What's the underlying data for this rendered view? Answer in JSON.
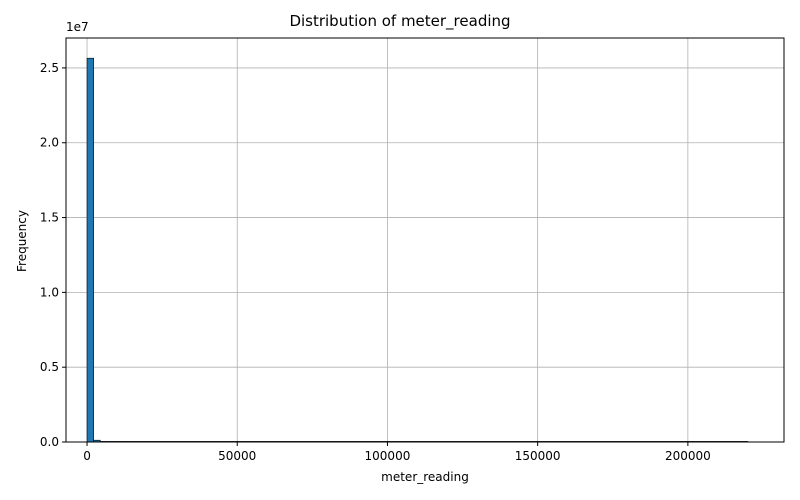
{
  "chart_data": {
    "type": "bar",
    "title": "Distribution of meter_reading",
    "xlabel": "meter_reading",
    "ylabel": "Frequency",
    "y_offset_label": "1e7",
    "xlim": [
      -7000,
      232000
    ],
    "ylim": [
      0,
      27000000
    ],
    "x_ticks": [
      0,
      50000,
      100000,
      150000,
      200000
    ],
    "x_tick_labels": [
      "0",
      "50000",
      "100000",
      "150000",
      "200000"
    ],
    "y_ticks": [
      0,
      5000000,
      10000000,
      15000000,
      20000000,
      25000000
    ],
    "y_tick_labels": [
      "0.0",
      "0.5",
      "1.0",
      "1.5",
      "2.0",
      "2.5"
    ],
    "grid": true,
    "bin_width": 2200,
    "bins": [
      {
        "x0": 0,
        "x1": 2200,
        "count": 25650000
      },
      {
        "x0": 2200,
        "x1": 4400,
        "count": 120000
      },
      {
        "x0": 4400,
        "x1": 6600,
        "count": 15000
      },
      {
        "x0": 6600,
        "x1": 8800,
        "count": 5000
      },
      {
        "x0": 8800,
        "x1": 11000,
        "count": 2000
      },
      {
        "x0": 11000,
        "x1": 220000,
        "count": 500
      }
    ],
    "colors": {
      "bar": "#1f77b4",
      "edge": "#000000",
      "grid": "#b0b0b0"
    }
  }
}
